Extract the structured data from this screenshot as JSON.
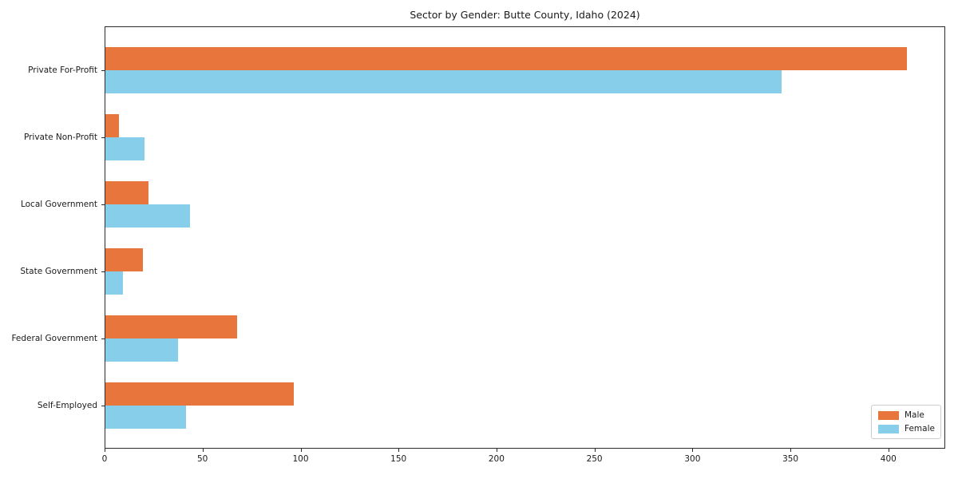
{
  "chart_data": {
    "type": "bar",
    "orientation": "horizontal",
    "title": "Sector by Gender: Butte County, Idaho (2024)",
    "categories": [
      "Private For-Profit",
      "Private Non-Profit",
      "Local Government",
      "State Government",
      "Federal Government",
      "Self-Employed"
    ],
    "series": [
      {
        "name": "Male",
        "color": "#e8763c",
        "values": [
          409,
          7,
          22,
          19,
          67,
          96
        ]
      },
      {
        "name": "Female",
        "color": "#87ceeb",
        "values": [
          345,
          20,
          43,
          9,
          37,
          41
        ]
      }
    ],
    "xlabel": "",
    "ylabel": "",
    "xlim": [
      0,
      429
    ],
    "xticks": [
      0,
      50,
      100,
      150,
      200,
      250,
      300,
      350,
      400
    ],
    "grid": false,
    "legend_position": "lower right",
    "background_color": "#ffffff",
    "spine_color": "#2b2b2b",
    "text_color": "#1a1a1a"
  }
}
